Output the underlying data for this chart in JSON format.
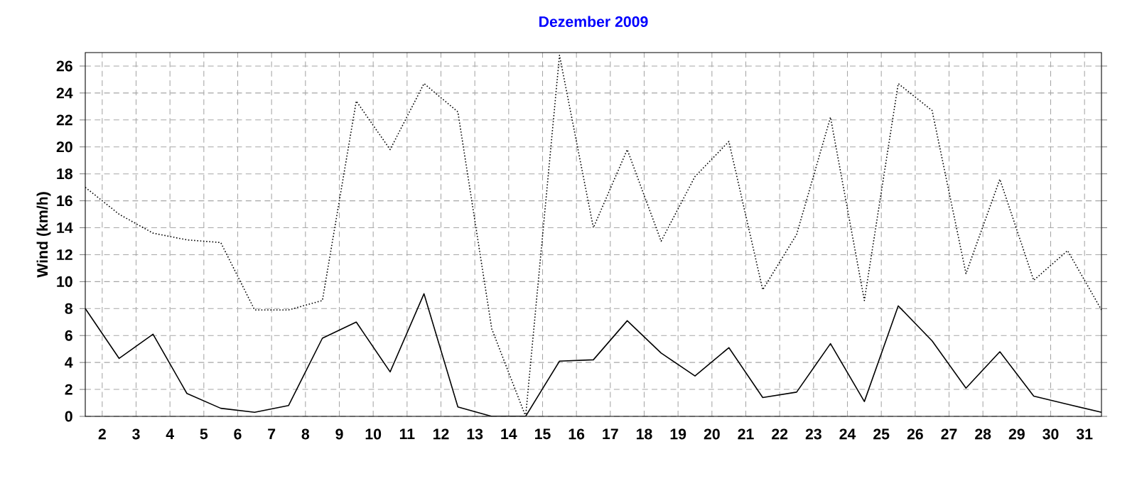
{
  "chart_data": {
    "type": "line",
    "title": "Dezember 2009",
    "ylabel": "Wind  (km/h)",
    "x": [
      1,
      2,
      3,
      4,
      5,
      6,
      7,
      8,
      9,
      10,
      11,
      12,
      13,
      14,
      15,
      16,
      17,
      18,
      19,
      20,
      21,
      22,
      23,
      24,
      25,
      26,
      27,
      28,
      29,
      30,
      31
    ],
    "series": [
      {
        "color": "#000000",
        "line_style": "dotted",
        "values": [
          17,
          15,
          13.6,
          13.1,
          12.9,
          7.9,
          7.9,
          8.6,
          23.4,
          19.8,
          24.7,
          22.6,
          6.5,
          0,
          26.8,
          14,
          19.8,
          13,
          17.8,
          20.4,
          9.4,
          13.5,
          22.2,
          8.6,
          24.7,
          22.7,
          10.6,
          17.6,
          10.1,
          12.3,
          7.9
        ]
      },
      {
        "color": "#000000",
        "line_style": "solid",
        "values": [
          8,
          4.3,
          6.1,
          1.7,
          0.6,
          0.3,
          0.8,
          5.8,
          7,
          3.3,
          9.1,
          0.7,
          0,
          0,
          4.1,
          4.2,
          7.1,
          4.7,
          3,
          5.1,
          1.4,
          1.8,
          5.4,
          1.1,
          8.2,
          5.6,
          2.1,
          4.8,
          1.5,
          0.9,
          0.3
        ]
      }
    ],
    "xlim": [
      1,
      31
    ],
    "ylim": [
      0,
      27
    ],
    "xticks": [
      {
        "value": 1.5,
        "label": "2"
      },
      {
        "value": 2.5,
        "label": "3"
      },
      {
        "value": 3.5,
        "label": "4"
      },
      {
        "value": 4.5,
        "label": "5"
      },
      {
        "value": 5.5,
        "label": "6"
      },
      {
        "value": 6.5,
        "label": "7"
      },
      {
        "value": 7.5,
        "label": "8"
      },
      {
        "value": 8.5,
        "label": "9"
      },
      {
        "value": 9.5,
        "label": "10"
      },
      {
        "value": 10.5,
        "label": "11"
      },
      {
        "value": 11.5,
        "label": "12"
      },
      {
        "value": 12.5,
        "label": "13"
      },
      {
        "value": 13.5,
        "label": "14"
      },
      {
        "value": 14.5,
        "label": "15"
      },
      {
        "value": 15.5,
        "label": "16"
      },
      {
        "value": 16.5,
        "label": "17"
      },
      {
        "value": 17.5,
        "label": "18"
      },
      {
        "value": 18.5,
        "label": "19"
      },
      {
        "value": 19.5,
        "label": "20"
      },
      {
        "value": 20.5,
        "label": "21"
      },
      {
        "value": 21.5,
        "label": "22"
      },
      {
        "value": 22.5,
        "label": "23"
      },
      {
        "value": 23.5,
        "label": "24"
      },
      {
        "value": 24.5,
        "label": "25"
      },
      {
        "value": 25.5,
        "label": "26"
      },
      {
        "value": 26.5,
        "label": "27"
      },
      {
        "value": 27.5,
        "label": "28"
      },
      {
        "value": 28.5,
        "label": "29"
      },
      {
        "value": 29.5,
        "label": "30"
      },
      {
        "value": 30.5,
        "label": "31"
      }
    ],
    "yticks": [
      0,
      2,
      4,
      6,
      8,
      10,
      12,
      14,
      16,
      18,
      20,
      22,
      24,
      26
    ],
    "grid": true,
    "marker": "none"
  }
}
